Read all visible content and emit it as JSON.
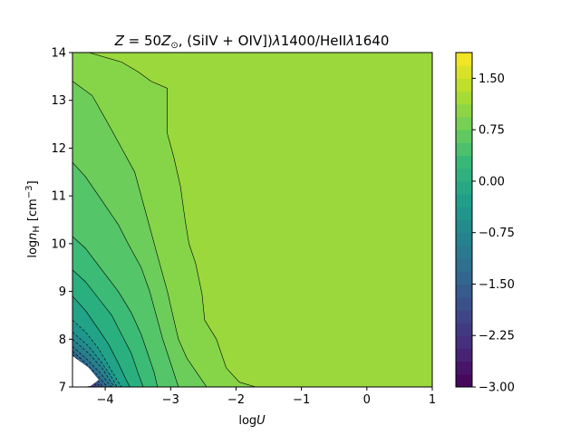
{
  "chart_data": {
    "type": "contour",
    "title": "Z = 50Z⊙, (SiIV + OIV])λ1400/HeIIλ1640",
    "title_parts": {
      "z": "Z",
      "eq": " = 50",
      "zsun": "Z",
      "sun_sub": "⊙",
      "ratio": ", (SiIV + OIV])",
      "lam1": "λ",
      "num1": "1400/HeII",
      "lam2": "λ",
      "num2": "1640"
    },
    "xlabel": {
      "log": "log",
      "var": "U"
    },
    "ylabel": {
      "log": "log",
      "var": "n",
      "sub": "H",
      "unit_open": "[cm",
      "unit_sup": "−3",
      "unit_close": "]"
    },
    "xlim": [
      -4.5,
      1
    ],
    "ylim": [
      7,
      14
    ],
    "x_ticks": [
      {
        "v": -4,
        "label": "−4"
      },
      {
        "v": -3,
        "label": "−3"
      },
      {
        "v": -2,
        "label": "−2"
      },
      {
        "v": -1,
        "label": "−1"
      },
      {
        "v": 0,
        "label": "0"
      },
      {
        "v": 1,
        "label": "1"
      }
    ],
    "y_ticks": [
      {
        "v": 7,
        "label": "7"
      },
      {
        "v": 8,
        "label": "8"
      },
      {
        "v": 9,
        "label": "9"
      },
      {
        "v": 10,
        "label": "10"
      },
      {
        "v": 11,
        "label": "11"
      },
      {
        "v": 12,
        "label": "12"
      },
      {
        "v": 13,
        "label": "13"
      },
      {
        "v": 14,
        "label": "14"
      }
    ],
    "colorbar": {
      "colormap": "viridis",
      "range": [
        -3.0,
        1.875
      ],
      "step": 0.1875,
      "ticks": [
        {
          "v": -3.0,
          "label": "−3.00"
        },
        {
          "v": -2.25,
          "label": "−2.25"
        },
        {
          "v": -1.5,
          "label": "−1.50"
        },
        {
          "v": -0.75,
          "label": "−0.75"
        },
        {
          "v": 0.0,
          "label": "0.00"
        },
        {
          "v": 0.75,
          "label": "0.75"
        },
        {
          "v": 1.5,
          "label": "1.50"
        }
      ]
    },
    "background_level": 1.125,
    "contour_bands": [
      {
        "level": 0.9375,
        "color": "#86d549",
        "boundary": [
          [
            -4.5,
            14
          ],
          [
            -4.25,
            14
          ],
          [
            -3.75,
            13.8
          ],
          [
            -3.5,
            13.6
          ],
          [
            -3.3,
            13.4
          ],
          [
            -3.05,
            13.25
          ],
          [
            -3.05,
            12.75
          ],
          [
            -3.05,
            12.3
          ],
          [
            -2.95,
            11.8
          ],
          [
            -2.85,
            11.2
          ],
          [
            -2.78,
            10.5
          ],
          [
            -2.72,
            10.0
          ],
          [
            -2.62,
            9.6
          ],
          [
            -2.52,
            8.95
          ],
          [
            -2.48,
            8.4
          ],
          [
            -2.3,
            8.0
          ],
          [
            -2.15,
            7.4
          ],
          [
            -1.95,
            7.1
          ],
          [
            -1.7,
            7.0
          ]
        ]
      },
      {
        "level": 0.75,
        "color": "#6ccd5a",
        "boundary": [
          [
            -4.5,
            13.4
          ],
          [
            -4.2,
            13.1
          ],
          [
            -3.95,
            12.5
          ],
          [
            -3.75,
            12.0
          ],
          [
            -3.55,
            11.5
          ],
          [
            -3.45,
            11.0
          ],
          [
            -3.35,
            10.5
          ],
          [
            -3.25,
            10.0
          ],
          [
            -3.15,
            9.5
          ],
          [
            -3.05,
            9.0
          ],
          [
            -2.95,
            8.4
          ],
          [
            -2.88,
            8.0
          ],
          [
            -2.75,
            7.6
          ],
          [
            -2.6,
            7.3
          ],
          [
            -2.45,
            7.0
          ]
        ]
      },
      {
        "level": 0.5625,
        "color": "#54c568",
        "boundary": [
          [
            -4.5,
            11.7
          ],
          [
            -4.3,
            11.4
          ],
          [
            -4.05,
            10.9
          ],
          [
            -3.8,
            10.4
          ],
          [
            -3.65,
            10.0
          ],
          [
            -3.45,
            9.5
          ],
          [
            -3.32,
            9.0
          ],
          [
            -3.22,
            8.5
          ],
          [
            -3.12,
            8.0
          ],
          [
            -3.0,
            7.5
          ],
          [
            -2.88,
            7.0
          ]
        ]
      },
      {
        "level": 0.375,
        "color": "#3bbb75",
        "boundary": [
          [
            -4.5,
            10.15
          ],
          [
            -4.3,
            9.9
          ],
          [
            -4.05,
            9.45
          ],
          [
            -3.8,
            9.0
          ],
          [
            -3.6,
            8.55
          ],
          [
            -3.45,
            8.1
          ],
          [
            -3.35,
            7.7
          ],
          [
            -3.25,
            7.3
          ],
          [
            -3.2,
            7.0
          ]
        ]
      },
      {
        "level": 0.1875,
        "color": "#2ab07f",
        "boundary": [
          [
            -4.5,
            9.45
          ],
          [
            -4.3,
            9.2
          ],
          [
            -4.1,
            8.85
          ],
          [
            -3.9,
            8.5
          ],
          [
            -3.75,
            8.1
          ],
          [
            -3.6,
            7.7
          ],
          [
            -3.5,
            7.3
          ],
          [
            -3.42,
            7.0
          ]
        ]
      },
      {
        "level": 0.0,
        "color": "#20a386",
        "boundary": [
          [
            -4.5,
            8.9
          ],
          [
            -4.3,
            8.6
          ],
          [
            -4.1,
            8.2
          ],
          [
            -3.95,
            7.9
          ],
          [
            -3.8,
            7.5
          ],
          [
            -3.68,
            7.15
          ],
          [
            -3.62,
            7.0
          ]
        ]
      },
      {
        "level": -0.1875,
        "color": "#1f968b",
        "boundary": [
          [
            -4.5,
            8.4
          ],
          [
            -4.3,
            8.15
          ],
          [
            -4.1,
            7.8
          ],
          [
            -3.95,
            7.45
          ],
          [
            -3.82,
            7.15
          ],
          [
            -3.75,
            7.0
          ]
        ]
      },
      {
        "level": -0.375,
        "color": "#23898e",
        "boundary": [
          [
            -4.5,
            8.15
          ],
          [
            -4.25,
            7.85
          ],
          [
            -4.05,
            7.5
          ],
          [
            -3.9,
            7.2
          ],
          [
            -3.82,
            7.0
          ]
        ]
      },
      {
        "level": -0.5625,
        "color": "#277f8e",
        "boundary": [
          [
            -4.5,
            8.0
          ],
          [
            -4.25,
            7.7
          ],
          [
            -4.05,
            7.4
          ],
          [
            -3.92,
            7.12
          ],
          [
            -3.86,
            7.0
          ]
        ]
      },
      {
        "level": -0.75,
        "color": "#2c728e",
        "boundary": [
          [
            -4.5,
            7.85
          ],
          [
            -4.28,
            7.58
          ],
          [
            -4.08,
            7.3
          ],
          [
            -3.95,
            7.08
          ],
          [
            -3.9,
            7.0
          ]
        ]
      },
      {
        "level": -0.9375,
        "color": "#31678e",
        "boundary": [
          [
            -4.5,
            7.75
          ],
          [
            -4.3,
            7.5
          ],
          [
            -4.12,
            7.25
          ],
          [
            -4.0,
            7.05
          ],
          [
            -3.96,
            7.0
          ]
        ]
      },
      {
        "level": -1.125,
        "color": "#365c8d",
        "boundary": [
          [
            -4.5,
            7.68
          ],
          [
            -4.32,
            7.45
          ],
          [
            -4.15,
            7.2
          ],
          [
            -4.04,
            7.0
          ]
        ]
      },
      {
        "level": -1.3125,
        "color": "#3b528b",
        "boundary": [
          [
            -4.5,
            7.62
          ],
          [
            -4.35,
            7.4
          ],
          [
            -4.18,
            7.17
          ],
          [
            -4.08,
            7.0
          ]
        ]
      },
      {
        "level": -1.5,
        "color": "#414487",
        "boundary": [
          [
            -4.5,
            7.56
          ],
          [
            -4.37,
            7.36
          ],
          [
            -4.2,
            7.14
          ],
          [
            -4.12,
            7.0
          ]
        ]
      },
      {
        "level": -1.6875,
        "color": "#453781",
        "boundary": [
          [
            -4.5,
            7.5
          ],
          [
            -4.38,
            7.32
          ],
          [
            -4.23,
            7.1
          ],
          [
            -4.16,
            7.0
          ]
        ]
      },
      {
        "level": -1.875,
        "color": "#472c7a",
        "boundary": [
          [
            -4.5,
            7.46
          ],
          [
            -4.4,
            7.28
          ],
          [
            -4.26,
            7.08
          ],
          [
            -4.2,
            7.0
          ]
        ]
      },
      {
        "level": -2.0625,
        "color": "#482173",
        "boundary": [
          [
            -4.5,
            7.42
          ],
          [
            -4.42,
            7.25
          ],
          [
            -4.28,
            7.05
          ],
          [
            -4.24,
            7.0
          ]
        ]
      },
      {
        "level": -2.25,
        "color": "#481668",
        "boundary": [
          [
            -4.5,
            7.38
          ],
          [
            -4.43,
            7.22
          ],
          [
            -4.32,
            7.04
          ],
          [
            -4.28,
            7.0
          ]
        ]
      },
      {
        "level": -2.4375,
        "color": "#46085c",
        "boundary": [
          [
            -4.5,
            7.34
          ],
          [
            -4.44,
            7.2
          ],
          [
            -4.35,
            7.02
          ],
          [
            -4.33,
            7.0
          ]
        ]
      }
    ],
    "dashed_levels_below": 0.0,
    "white_region": [
      [
        -4.5,
        7.65
      ],
      [
        -4.25,
        7.4
      ],
      [
        -4.1,
        7.15
      ],
      [
        -4.22,
        7.02
      ],
      [
        -4.33,
        7.0
      ],
      [
        -4.5,
        7.0
      ]
    ]
  }
}
